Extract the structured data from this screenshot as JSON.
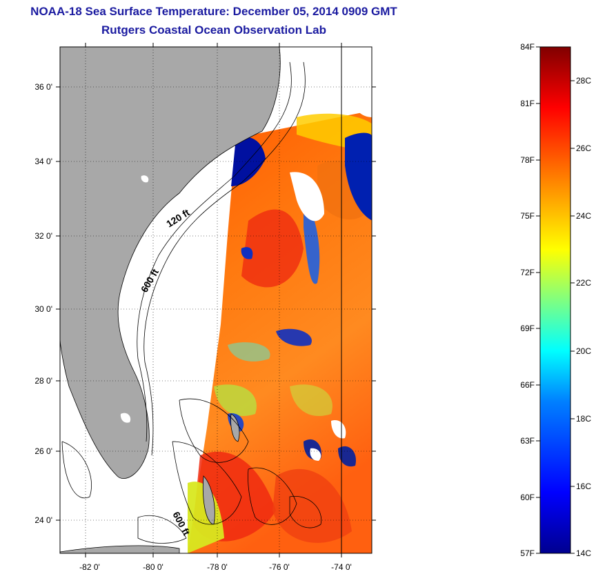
{
  "header": {
    "title": "NOAA-18 Sea Surface Temperature:  December 05, 2014 0909 GMT",
    "subtitle": "Rutgers Coastal Ocean Observation Lab"
  },
  "map": {
    "lat_ticks": [
      "36 0'",
      "34 0'",
      "32 0'",
      "30 0'",
      "28 0'",
      "26 0'",
      "24 0'"
    ],
    "lon_ticks": [
      "-82 0'",
      "-80 0'",
      "-78 0'",
      "-76 0'",
      "-74 0'"
    ],
    "contour_labels": [
      "120 ft",
      "600 ft",
      "600 ft"
    ]
  },
  "colorbar": {
    "f_labels": [
      "84F",
      "81F",
      "78F",
      "75F",
      "72F",
      "69F",
      "66F",
      "63F",
      "60F",
      "57F"
    ],
    "c_labels": [
      "28C",
      "26C",
      "24C",
      "22C",
      "20C",
      "18C",
      "16C",
      "14C"
    ],
    "colors": [
      "#00008f",
      "#0000ff",
      "#0080ff",
      "#00ffff",
      "#80ff80",
      "#ffff00",
      "#ff8000",
      "#ff0000",
      "#800000"
    ]
  }
}
